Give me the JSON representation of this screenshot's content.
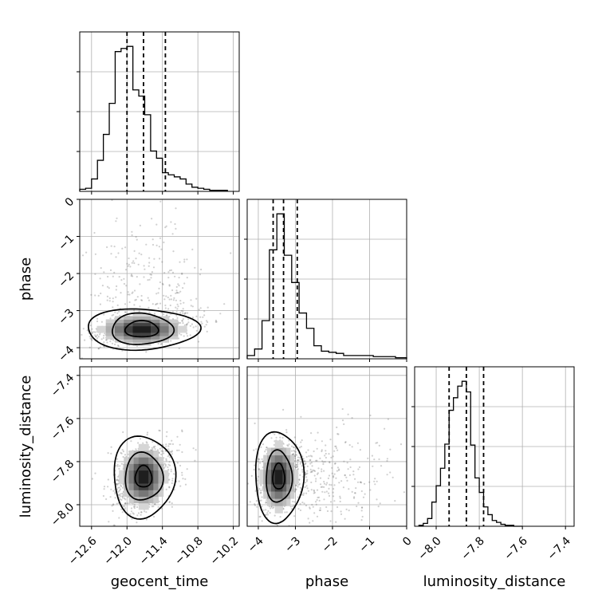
{
  "chart_data": {
    "type": "corner",
    "parameters": [
      "geocent_time",
      "phase",
      "luminosity_distance"
    ],
    "axis_labels": {
      "geocent_time": "geocent_time",
      "phase": "phase",
      "luminosity_distance": "luminosity_distance"
    },
    "ranges": {
      "geocent_time": [
        -12.8,
        -10.1
      ],
      "phase": [
        -4.3,
        0.0
      ],
      "luminosity_distance": [
        -8.1,
        -7.36
      ]
    },
    "ticks": {
      "geocent_time": [
        -12.6,
        -12.0,
        -11.4,
        -10.8,
        -10.2
      ],
      "phase": [
        -4,
        -3,
        -2,
        -1,
        0
      ],
      "luminosity_distance": [
        -8.0,
        -7.8,
        -7.6,
        -7.4
      ]
    },
    "tick_labels": {
      "geocent_time": [
        "−12.6",
        "−12.0",
        "−11.4",
        "−10.8",
        "−10.2"
      ],
      "phase": [
        "−4",
        "−3",
        "−2",
        "−1",
        "0"
      ],
      "luminosity_distance": [
        "−8.0",
        "−7.8",
        "−7.6",
        "−7.4"
      ]
    },
    "quantiles": {
      "geocent_time": [
        -12.0,
        -11.72,
        -11.35
      ],
      "phase": [
        -3.6,
        -3.32,
        -2.95
      ],
      "luminosity_distance": [
        -7.94,
        -7.86,
        -7.78
      ]
    },
    "histograms": {
      "geocent_time": {
        "edges": [
          -12.8,
          -12.7,
          -12.6,
          -12.5,
          -12.4,
          -12.3,
          -12.2,
          -12.1,
          -12.0,
          -11.9,
          -11.8,
          -11.7,
          -11.6,
          -11.5,
          -11.4,
          -11.3,
          -11.2,
          -11.1,
          -11.0,
          -10.9,
          -10.8,
          -10.7,
          -10.6,
          -10.5,
          -10.4,
          -10.3
        ],
        "counts": [
          2,
          3,
          12,
          30,
          55,
          85,
          135,
          138,
          140,
          98,
          92,
          74,
          39,
          32,
          18,
          16,
          14,
          12,
          7,
          4,
          3,
          2,
          1,
          1,
          1
        ]
      },
      "phase": {
        "edges": [
          -4.3,
          -4.1,
          -3.9,
          -3.7,
          -3.5,
          -3.3,
          -3.1,
          -2.9,
          -2.7,
          -2.5,
          -2.3,
          -2.1,
          -1.9,
          -1.7,
          -1.5,
          -1.3,
          -1.1,
          -0.9,
          -0.7,
          -0.5,
          -0.3,
          0.0
        ],
        "counts": [
          3,
          9,
          35,
          100,
          133,
          95,
          70,
          42,
          28,
          12,
          7,
          6,
          5,
          3,
          3,
          3,
          3,
          2,
          2,
          2,
          1
        ]
      },
      "luminosity_distance": {
        "edges": [
          -8.08,
          -8.06,
          -8.04,
          -8.02,
          -8.0,
          -7.98,
          -7.96,
          -7.94,
          -7.92,
          -7.9,
          -7.88,
          -7.86,
          -7.84,
          -7.82,
          -7.8,
          -7.78,
          -7.76,
          -7.74,
          -7.72,
          -7.7,
          -7.68,
          -7.66,
          -7.64,
          -7.62,
          -7.6
        ],
        "counts": [
          1,
          3,
          8,
          25,
          42,
          60,
          85,
          120,
          133,
          145,
          150,
          139,
          84,
          50,
          35,
          20,
          12,
          6,
          4,
          2,
          1,
          1,
          0,
          0
        ]
      }
    },
    "pairs": [
      {
        "x": "geocent_time",
        "y": "phase",
        "peak": [
          -11.75,
          -3.5
        ],
        "contours": [
          {
            "level": 0.393,
            "rx": 0.28,
            "ry": 0.22
          },
          {
            "level": 0.865,
            "rx": 0.52,
            "ry": 0.42
          },
          {
            "level": 0.989,
            "rx": 0.95,
            "ry": 0.55
          }
        ]
      },
      {
        "x": "geocent_time",
        "y": "luminosity_distance",
        "peak": [
          -11.72,
          -7.87
        ],
        "contours": [
          {
            "level": 0.393,
            "rx": 0.14,
            "ry": 0.05
          },
          {
            "level": 0.865,
            "rx": 0.32,
            "ry": 0.11
          },
          {
            "level": 0.989,
            "rx": 0.52,
            "ry": 0.19
          }
        ]
      },
      {
        "x": "phase",
        "y": "luminosity_distance",
        "peak": [
          -3.45,
          -7.87
        ],
        "contours": [
          {
            "level": 0.393,
            "rx": 0.16,
            "ry": 0.06
          },
          {
            "level": 0.865,
            "rx": 0.35,
            "ry": 0.12
          },
          {
            "level": 0.989,
            "rx": 0.65,
            "ry": 0.21
          }
        ]
      }
    ],
    "grid": true
  }
}
